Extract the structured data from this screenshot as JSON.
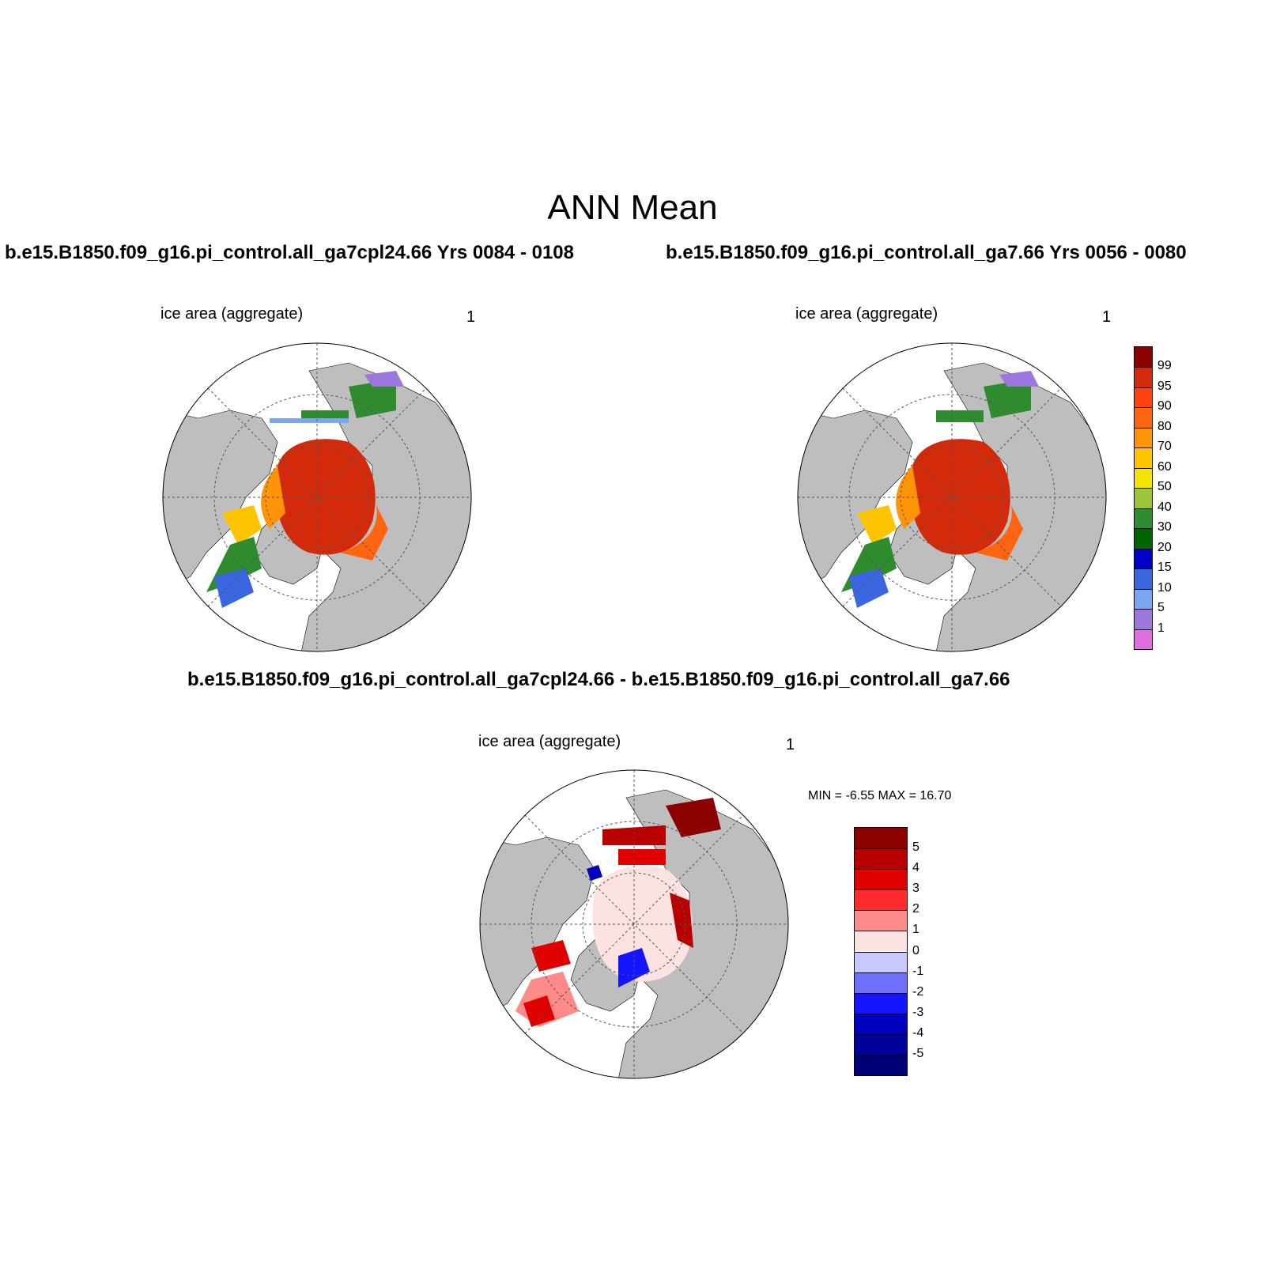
{
  "title": "ANN Mean",
  "panels": [
    {
      "case_title": "b.e15.B1850.f09_g16.pi_control.all_ga7cpl24.66  Yrs 0084 - 0108",
      "variable": "ice area  (aggregate)",
      "units": "1"
    },
    {
      "case_title": "b.e15.B1850.f09_g16.pi_control.all_ga7.66  Yrs 0056 - 0080",
      "variable": "ice area  (aggregate)",
      "units": "1"
    },
    {
      "case_title": "b.e15.B1850.f09_g16.pi_control.all_ga7cpl24.66 - b.e15.B1850.f09_g16.pi_control.all_ga7.66",
      "variable": "ice area  (aggregate)",
      "units": "1",
      "min_max": "MIN =  -6.55 MAX =  16.70"
    }
  ],
  "colorbar_abs": {
    "labels": [
      "99",
      "95",
      "90",
      "80",
      "70",
      "60",
      "50",
      "40",
      "30",
      "20",
      "15",
      "10",
      "5",
      "1"
    ],
    "colors": [
      "#8b0000",
      "#d42a0c",
      "#ff4010",
      "#ff6410",
      "#ff9408",
      "#ffc400",
      "#f2e400",
      "#9bc53b",
      "#2e8b2e",
      "#006400",
      "#0000c8",
      "#3a66e0",
      "#7aa6f4",
      "#9c78dc",
      "#e070e0"
    ]
  },
  "colorbar_diff": {
    "labels": [
      "5",
      "4",
      "3",
      "2",
      "1",
      "0",
      "-1",
      "-2",
      "-3",
      "-4",
      "-5"
    ],
    "colors": [
      "#8b0000",
      "#b80000",
      "#e00000",
      "#ff2a2a",
      "#ff8a8a",
      "#fde2e2",
      "#c8c8ff",
      "#7070ff",
      "#1414ff",
      "#0000c0",
      "#00009a",
      "#000078"
    ]
  },
  "map_colors": {
    "land": "#bebebe",
    "ocean": "#ffffff",
    "grid": "#555555"
  }
}
